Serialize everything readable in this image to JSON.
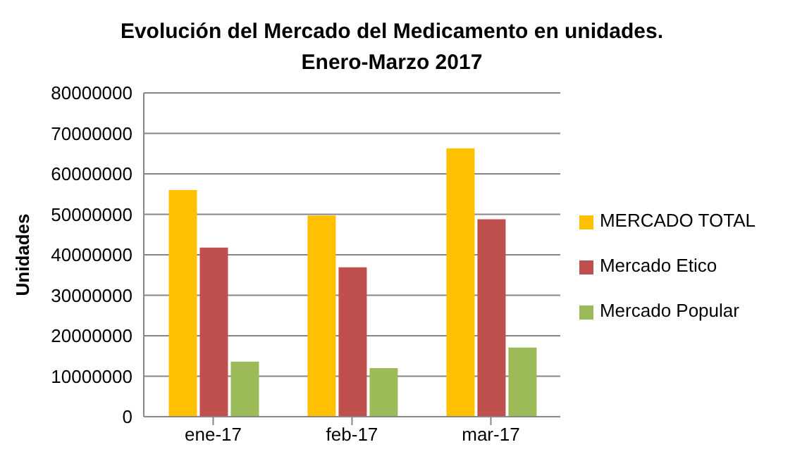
{
  "chart_data": {
    "type": "bar",
    "title": "Evolución del Mercado del Medicamento en unidades.\nEnero-Marzo 2017",
    "ylabel": "Unidades",
    "categories": [
      "ene-17",
      "feb-17",
      "mar-17"
    ],
    "series": [
      {
        "name": "MERCADO TOTAL",
        "color": "#ffc000",
        "values": [
          56000000,
          49700000,
          66300000
        ]
      },
      {
        "name": "Mercado Etico",
        "color": "#c0504d",
        "values": [
          41800000,
          36900000,
          48800000
        ]
      },
      {
        "name": "Mercado Popular",
        "color": "#9bbb59",
        "values": [
          13600000,
          12000000,
          17100000
        ]
      }
    ],
    "ylim": [
      0,
      80000000
    ],
    "yticks": [
      0,
      10000000,
      20000000,
      30000000,
      40000000,
      50000000,
      60000000,
      70000000,
      80000000
    ],
    "grid": "y",
    "legend": "right"
  }
}
